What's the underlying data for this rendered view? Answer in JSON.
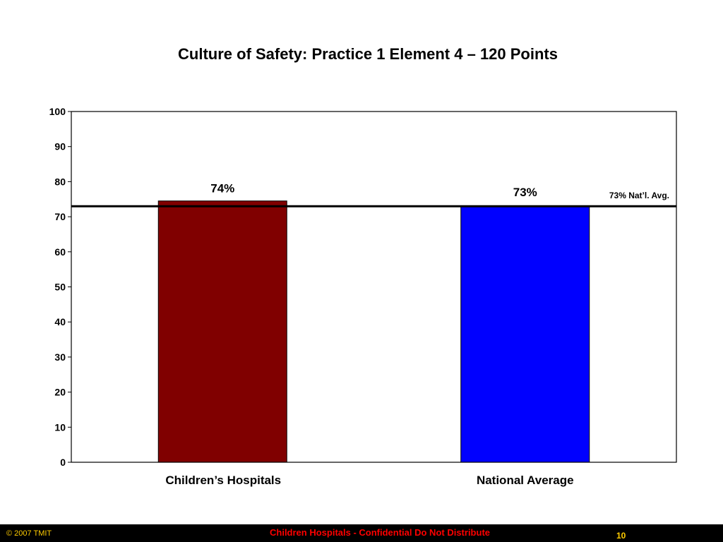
{
  "slide": {
    "title": "Culture of Safety: Practice 1 Element 4 – 120 Points"
  },
  "chart_data": {
    "type": "bar",
    "title": "Culture of Safety: Practice 1 Element 4 – 120 Points",
    "xlabel": "",
    "ylabel": "",
    "categories": [
      "Children’s Hospitals",
      "National Average"
    ],
    "values": [
      74.5,
      73
    ],
    "data_labels": [
      "74%",
      "73%"
    ],
    "bar_colors": [
      "#800000",
      "#0000ff"
    ],
    "ylim": [
      0,
      100
    ],
    "yticks": [
      0,
      10,
      20,
      30,
      40,
      50,
      60,
      70,
      80,
      90,
      100
    ],
    "reference_line": {
      "value": 73,
      "label": "73% Nat’l. Avg.",
      "color": "#000000"
    },
    "grid": false,
    "legend": "none"
  },
  "footer": {
    "copyright": "© 2007 TMIT",
    "confidential": "Children Hospitals - Confidential Do Not Distribute",
    "page_number": "10",
    "background_color": "#000000",
    "accent_color": "#ffcc00",
    "confidential_color": "#ff0000"
  }
}
